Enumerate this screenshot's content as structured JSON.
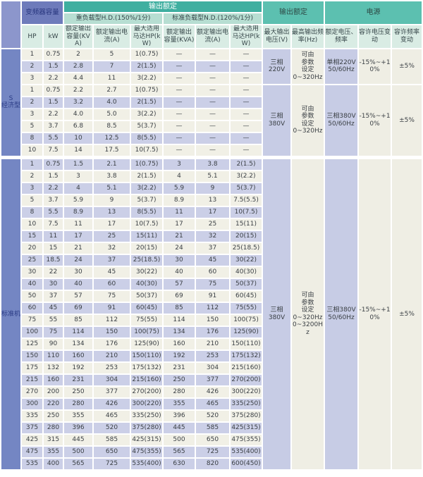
{
  "table": {
    "colors": {
      "header_teal": "#3fafa0",
      "header_teal_mid": "#5cc0b0",
      "header_green_light": "#b7ded2",
      "header_mint": "#d9ece4",
      "header_blue": "#6e7bbb",
      "side_blue": "#7486c3",
      "row_cream": "#f1f0e6",
      "row_lavender": "#cbcfe7"
    },
    "header": {
      "capacity": "变频器容量",
      "output_rating_center": "输出额定",
      "hd_group": "重负载型H.D.(150%/1分)",
      "nd_group": "标准负载型N.D.(120%/1分)",
      "col_hp": "HP",
      "col_kw": "kW",
      "col_kva_hd": "额定输出容量(KVA)",
      "col_current_hd": "额定输出电流(A)",
      "col_motor_hd": "最大适用马达HP(kW)",
      "col_kva_nd": "额定输出容量(KVA)",
      "col_current_nd": "额定输出电流(A)",
      "col_motor_nd": "最大适用马达HP(kW)",
      "output_rating_right": "输出额定",
      "power": "电源",
      "col_max_voltage": "最大输出电压(V)",
      "col_max_freq": "最高输出频率(Hz)",
      "col_rated_voltage_freq": "额定电压、频率",
      "col_voltage_tolerance": "容许电压变动",
      "col_freq_tolerance": "容许频率变动"
    },
    "sections": [
      {
        "label": "S\n经济型",
        "groups": [
          {
            "voltage": "三相\n220V",
            "freq": "可由\n参数\n设定\n0~320Hz",
            "supply": "单相220V\n50/60Hz",
            "voltage_tolerance": "-15%~+10%",
            "freq_tolerance": "±5%",
            "rows": [
              {
                "v": [
                  "1",
                  "0.75",
                  "2",
                  "5",
                  "1(0.75)",
                  "—",
                  "—",
                  "—"
                ],
                "s": "a"
              },
              {
                "v": [
                  "2",
                  "1.5",
                  "2.8",
                  "7",
                  "2(1.5)",
                  "—",
                  "—",
                  "—"
                ],
                "s": "b"
              },
              {
                "v": [
                  "3",
                  "2.2",
                  "4.4",
                  "11",
                  "3(2.2)",
                  "—",
                  "—",
                  "—"
                ],
                "s": "a"
              }
            ]
          },
          {
            "voltage": "三相\n380V",
            "freq": "可由\n参数\n设定\n0~320Hz",
            "supply": "三相380V\n50/60Hz",
            "voltage_tolerance": "-15%~+10%",
            "freq_tolerance": "±5%",
            "rows": [
              {
                "v": [
                  "1",
                  "0.75",
                  "2.2",
                  "2.7",
                  "1(0.75)",
                  "—",
                  "—",
                  "—"
                ],
                "s": "a"
              },
              {
                "v": [
                  "2",
                  "1.5",
                  "3.2",
                  "4.0",
                  "2(1.5)",
                  "—",
                  "—",
                  "—"
                ],
                "s": "b"
              },
              {
                "v": [
                  "3",
                  "2.2",
                  "4.0",
                  "5.0",
                  "3(2.2)",
                  "—",
                  "—",
                  "—"
                ],
                "s": "a"
              },
              {
                "v": [
                  "5",
                  "3.7",
                  "6.8",
                  "8.5",
                  "5(3.7)",
                  "—",
                  "—",
                  "—"
                ],
                "s": "a"
              },
              {
                "v": [
                  "8",
                  "5.5",
                  "10",
                  "12.5",
                  "8(5.5)",
                  "—",
                  "—",
                  "—"
                ],
                "s": "b"
              },
              {
                "v": [
                  "10",
                  "7.5",
                  "14",
                  "17.5",
                  "10(7.5)",
                  "—",
                  "—",
                  "—"
                ],
                "s": "a"
              }
            ]
          }
        ]
      },
      {
        "label": "标准机",
        "groups": [
          {
            "voltage": "三相\n380V",
            "freq": "可由\n参数\n设定\n0~320Hz\n0~3200Hz",
            "supply": "三相380V\n50/60Hz",
            "voltage_tolerance": "-15%~+10%",
            "freq_tolerance": "±5%",
            "rows": [
              {
                "v": [
                  "1",
                  "0.75",
                  "1.5",
                  "2.1",
                  "1(0.75)",
                  "3",
                  "3.8",
                  "2(1.5)"
                ],
                "s": "b"
              },
              {
                "v": [
                  "2",
                  "1.5",
                  "3",
                  "3.8",
                  "2(1.5)",
                  "4",
                  "5.1",
                  "3(2.2)"
                ],
                "s": "a"
              },
              {
                "v": [
                  "3",
                  "2.2",
                  "4",
                  "5.1",
                  "3(2.2)",
                  "5.9",
                  "9",
                  "5(3.7)"
                ],
                "s": "b"
              },
              {
                "v": [
                  "5",
                  "3.7",
                  "5.9",
                  "9",
                  "5(3.7)",
                  "8.9",
                  "13",
                  "7.5(5.5)"
                ],
                "s": "a"
              },
              {
                "v": [
                  "8",
                  "5.5",
                  "8.9",
                  "13",
                  "8(5.5)",
                  "11",
                  "17",
                  "10(7.5)"
                ],
                "s": "b"
              },
              {
                "v": [
                  "10",
                  "7.5",
                  "11",
                  "17",
                  "10(7.5)",
                  "17",
                  "25",
                  "15(11)"
                ],
                "s": "a"
              },
              {
                "v": [
                  "15",
                  "11",
                  "17",
                  "25",
                  "15(11)",
                  "21",
                  "32",
                  "20(15)"
                ],
                "s": "b"
              },
              {
                "v": [
                  "20",
                  "15",
                  "21",
                  "32",
                  "20(15)",
                  "24",
                  "37",
                  "25(18.5)"
                ],
                "s": "a"
              },
              {
                "v": [
                  "25",
                  "18.5",
                  "24",
                  "37",
                  "25(18.5)",
                  "30",
                  "45",
                  "30(22)"
                ],
                "s": "b"
              },
              {
                "v": [
                  "30",
                  "22",
                  "30",
                  "45",
                  "30(22)",
                  "40",
                  "60",
                  "40(30)"
                ],
                "s": "a"
              },
              {
                "v": [
                  "40",
                  "30",
                  "40",
                  "60",
                  "40(30)",
                  "57",
                  "75",
                  "50(37)"
                ],
                "s": "b"
              },
              {
                "v": [
                  "50",
                  "37",
                  "57",
                  "75",
                  "50(37)",
                  "69",
                  "91",
                  "60(45)"
                ],
                "s": "a"
              },
              {
                "v": [
                  "60",
                  "45",
                  "69",
                  "91",
                  "60(45)",
                  "85",
                  "112",
                  "75(55)"
                ],
                "s": "b"
              },
              {
                "v": [
                  "75",
                  "55",
                  "85",
                  "112",
                  "75(55)",
                  "114",
                  "150",
                  "100(75)"
                ],
                "s": "a"
              },
              {
                "v": [
                  "100",
                  "75",
                  "114",
                  "150",
                  "100(75)",
                  "134",
                  "176",
                  "125(90)"
                ],
                "s": "b"
              },
              {
                "v": [
                  "125",
                  "90",
                  "134",
                  "176",
                  "125(90)",
                  "160",
                  "210",
                  "150(110)"
                ],
                "s": "a"
              },
              {
                "v": [
                  "150",
                  "110",
                  "160",
                  "210",
                  "150(110)",
                  "192",
                  "253",
                  "175(132)"
                ],
                "s": "b"
              },
              {
                "v": [
                  "175",
                  "132",
                  "192",
                  "253",
                  "175(132)",
                  "231",
                  "304",
                  "215(160)"
                ],
                "s": "a"
              },
              {
                "v": [
                  "215",
                  "160",
                  "231",
                  "304",
                  "215(160)",
                  "250",
                  "377",
                  "270(200)"
                ],
                "s": "b"
              },
              {
                "v": [
                  "270",
                  "200",
                  "250",
                  "377",
                  "270(200)",
                  "280",
                  "426",
                  "300(220)"
                ],
                "s": "a"
              },
              {
                "v": [
                  "300",
                  "220",
                  "280",
                  "426",
                  "300(220)",
                  "355",
                  "465",
                  "335(250)"
                ],
                "s": "b"
              },
              {
                "v": [
                  "335",
                  "250",
                  "355",
                  "465",
                  "335(250)",
                  "396",
                  "520",
                  "375(280)"
                ],
                "s": "a"
              },
              {
                "v": [
                  "375",
                  "280",
                  "396",
                  "520",
                  "375(280)",
                  "445",
                  "585",
                  "425(315)"
                ],
                "s": "b"
              },
              {
                "v": [
                  "425",
                  "315",
                  "445",
                  "585",
                  "425(315)",
                  "500",
                  "650",
                  "475(355)"
                ],
                "s": "a"
              },
              {
                "v": [
                  "475",
                  "355",
                  "500",
                  "650",
                  "475(355)",
                  "565",
                  "725",
                  "535(400)"
                ],
                "s": "b"
              },
              {
                "v": [
                  "535",
                  "400",
                  "565",
                  "725",
                  "535(400)",
                  "630",
                  "820",
                  "600(450)"
                ],
                "s": "b"
              }
            ]
          }
        ]
      }
    ]
  }
}
